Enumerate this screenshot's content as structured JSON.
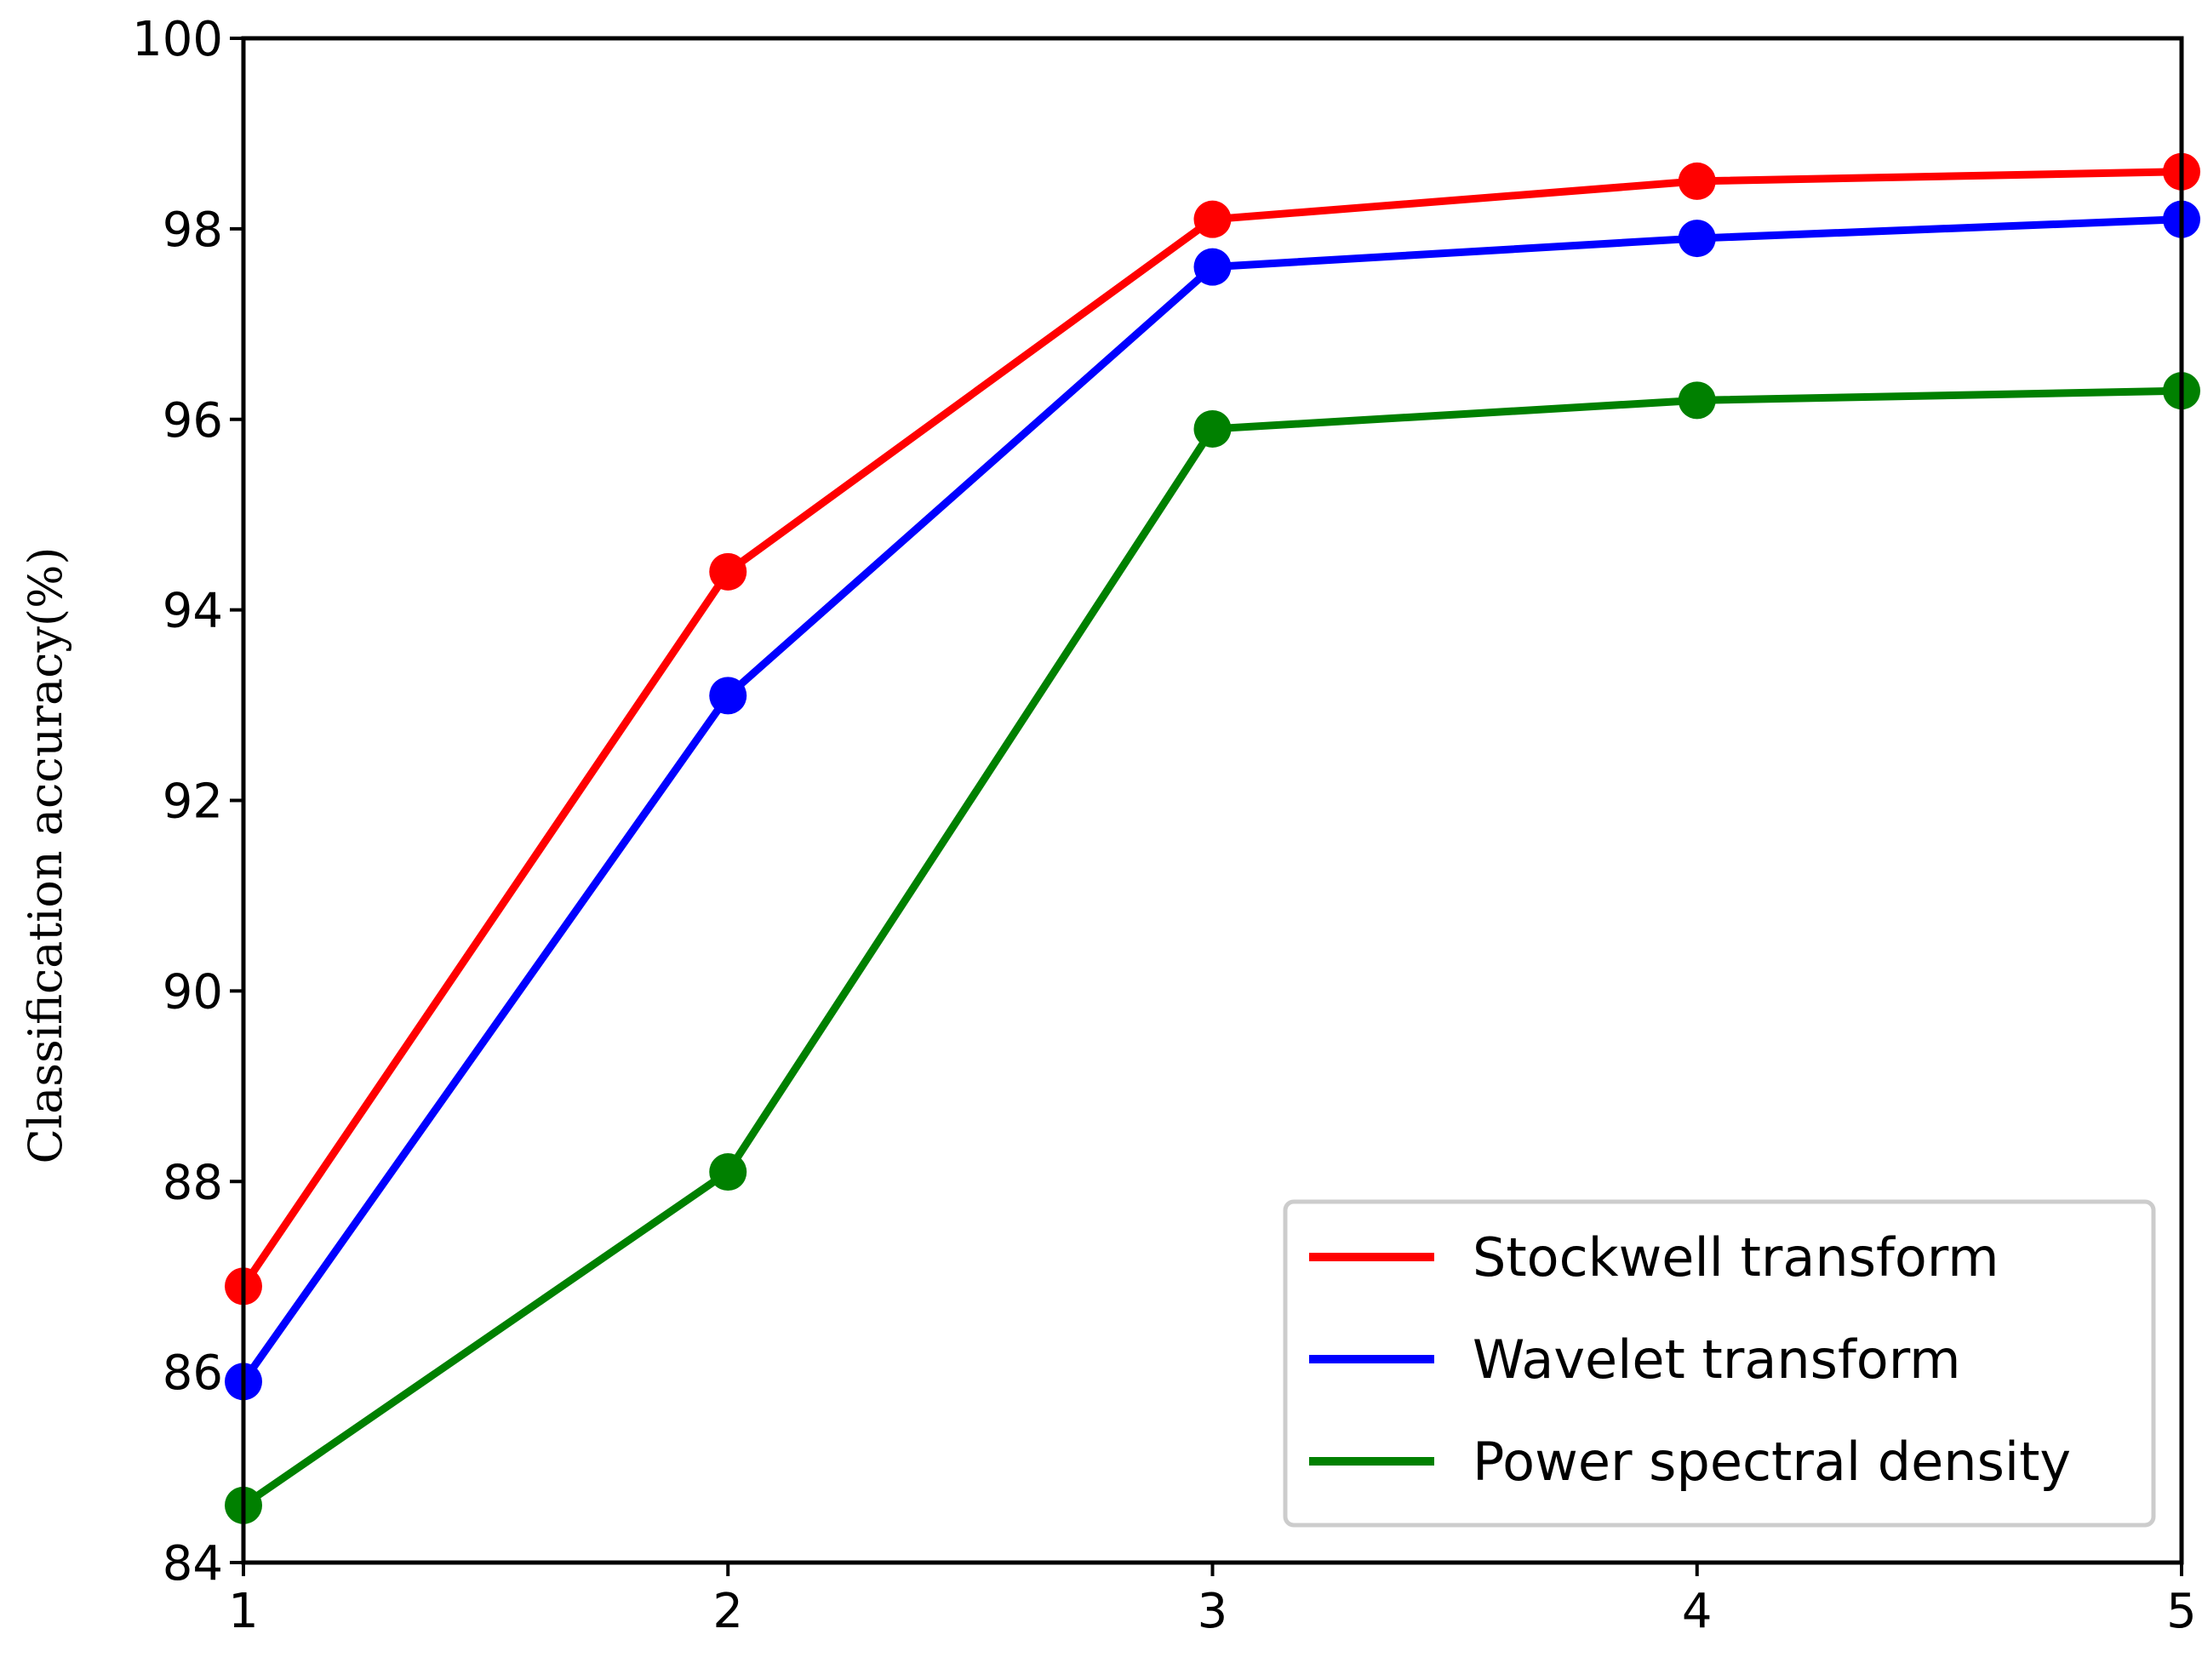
{
  "chart_data": {
    "type": "line",
    "title": "",
    "xlabel": "",
    "ylabel": "Classification accuracy(%)",
    "x": [
      1,
      2,
      3,
      4,
      5
    ],
    "xlim": [
      1,
      5
    ],
    "ylim": [
      84,
      100
    ],
    "x_ticks": [
      "1",
      "2",
      "3",
      "4",
      "5"
    ],
    "y_ticks": [
      "84",
      "86",
      "88",
      "90",
      "92",
      "94",
      "96",
      "98",
      "100"
    ],
    "grid": false,
    "legend_position": "bottom-right",
    "series": [
      {
        "name": "Stockwell transform",
        "color": "#ff0000",
        "values": [
          86.9,
          94.4,
          98.1,
          98.5,
          98.6
        ]
      },
      {
        "name": "Wavelet transform",
        "color": "#0000ff",
        "values": [
          85.9,
          93.1,
          97.6,
          97.9,
          98.1
        ]
      },
      {
        "name": "Power spectral density",
        "color": "#008000",
        "values": [
          84.6,
          88.1,
          95.9,
          96.2,
          96.3
        ]
      }
    ]
  }
}
